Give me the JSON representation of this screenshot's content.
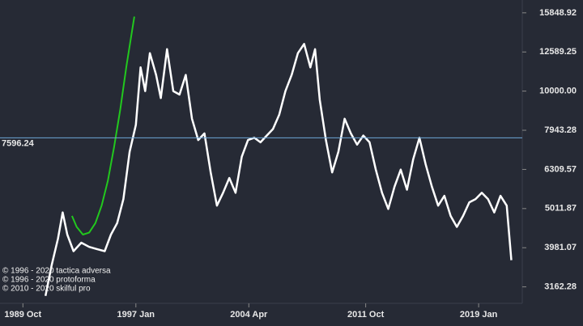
{
  "chart_data": {
    "type": "line",
    "log_y": true,
    "xlim": [
      1988.28,
      2021.8
    ],
    "xticks": [
      {
        "value": 1989.75,
        "label": "1989 Oct"
      },
      {
        "value": 1997.0,
        "label": "1997 Jan"
      },
      {
        "value": 2004.25,
        "label": "2004 Apr"
      },
      {
        "value": 2011.75,
        "label": "2011 Oct"
      },
      {
        "value": 2019.0,
        "label": "2019 Jan"
      }
    ],
    "ylim": [
      2870,
      17090
    ],
    "yticks": [
      15848.92,
      12589.25,
      {
        "value": 10000,
        "label": "10000.00"
      },
      7943.28,
      6309.57,
      5011.87,
      3981.07,
      3162.28
    ],
    "hline": {
      "value": 7596.24,
      "color": "#6ea6d6"
    },
    "series": [
      {
        "color": "#ffffff",
        "x": [
          1991.2,
          1991.6,
          1992.0,
          1992.3,
          1992.6,
          1993.0,
          1993.5,
          1994.0,
          1994.5,
          1995.0,
          1995.4,
          1995.8,
          1996.2,
          1996.6,
          1997.0,
          1997.3,
          1997.6,
          1997.9,
          1998.3,
          1998.6,
          1999.0,
          1999.4,
          1999.8,
          2000.2,
          2000.6,
          2001.0,
          2001.4,
          2001.8,
          2002.2,
          2002.6,
          2003.0,
          2003.4,
          2003.8,
          2004.2,
          2004.6,
          2005.0,
          2005.4,
          2005.8,
          2006.2,
          2006.6,
          2007.0,
          2007.4,
          2007.8,
          2008.2,
          2008.5,
          2008.8,
          2009.2,
          2009.6,
          2010.0,
          2010.4,
          2010.8,
          2011.2,
          2011.6,
          2012.0,
          2012.4,
          2012.8,
          2013.2,
          2013.6,
          2014.0,
          2014.4,
          2014.8,
          2015.2,
          2015.6,
          2016.0,
          2016.4,
          2016.8,
          2017.2,
          2017.6,
          2018.0,
          2018.4,
          2018.8,
          2019.2,
          2019.6,
          2020.0,
          2020.4,
          2020.8,
          2021.1
        ],
        "values": [
          3000,
          3600,
          4200,
          4900,
          4300,
          3900,
          4100,
          4000,
          3950,
          3900,
          4300,
          4600,
          5300,
          7000,
          8200,
          11500,
          10000,
          12500,
          11000,
          9600,
          12800,
          10000,
          9800,
          11000,
          8500,
          7500,
          7800,
          6200,
          5100,
          5500,
          6000,
          5500,
          6800,
          7500,
          7600,
          7400,
          7700,
          8000,
          8700,
          10000,
          11000,
          12500,
          13200,
          11500,
          12800,
          9500,
          7500,
          6200,
          7000,
          8500,
          7800,
          7300,
          7700,
          7400,
          6300,
          5500,
          5000,
          5700,
          6300,
          5600,
          6700,
          7600,
          6500,
          5700,
          5100,
          5400,
          4800,
          4500,
          4800,
          5200,
          5300,
          5500,
          5300,
          4900,
          5400,
          5100,
          3700
        ]
      },
      {
        "color": "#22c81e",
        "x": [
          1992.9,
          1993.2,
          1993.6,
          1994.0,
          1994.4,
          1994.8,
          1995.2,
          1995.6,
          1996.0,
          1996.4,
          1996.9
        ],
        "values": [
          4800,
          4500,
          4300,
          4350,
          4600,
          5100,
          5900,
          7200,
          9000,
          11600,
          15500
        ]
      }
    ],
    "annotations": [
      "© 1996 - 2020 tactica adversa",
      "© 1996 - 2020 protoforma",
      "© 2010 - 2020 skilful pro"
    ]
  }
}
